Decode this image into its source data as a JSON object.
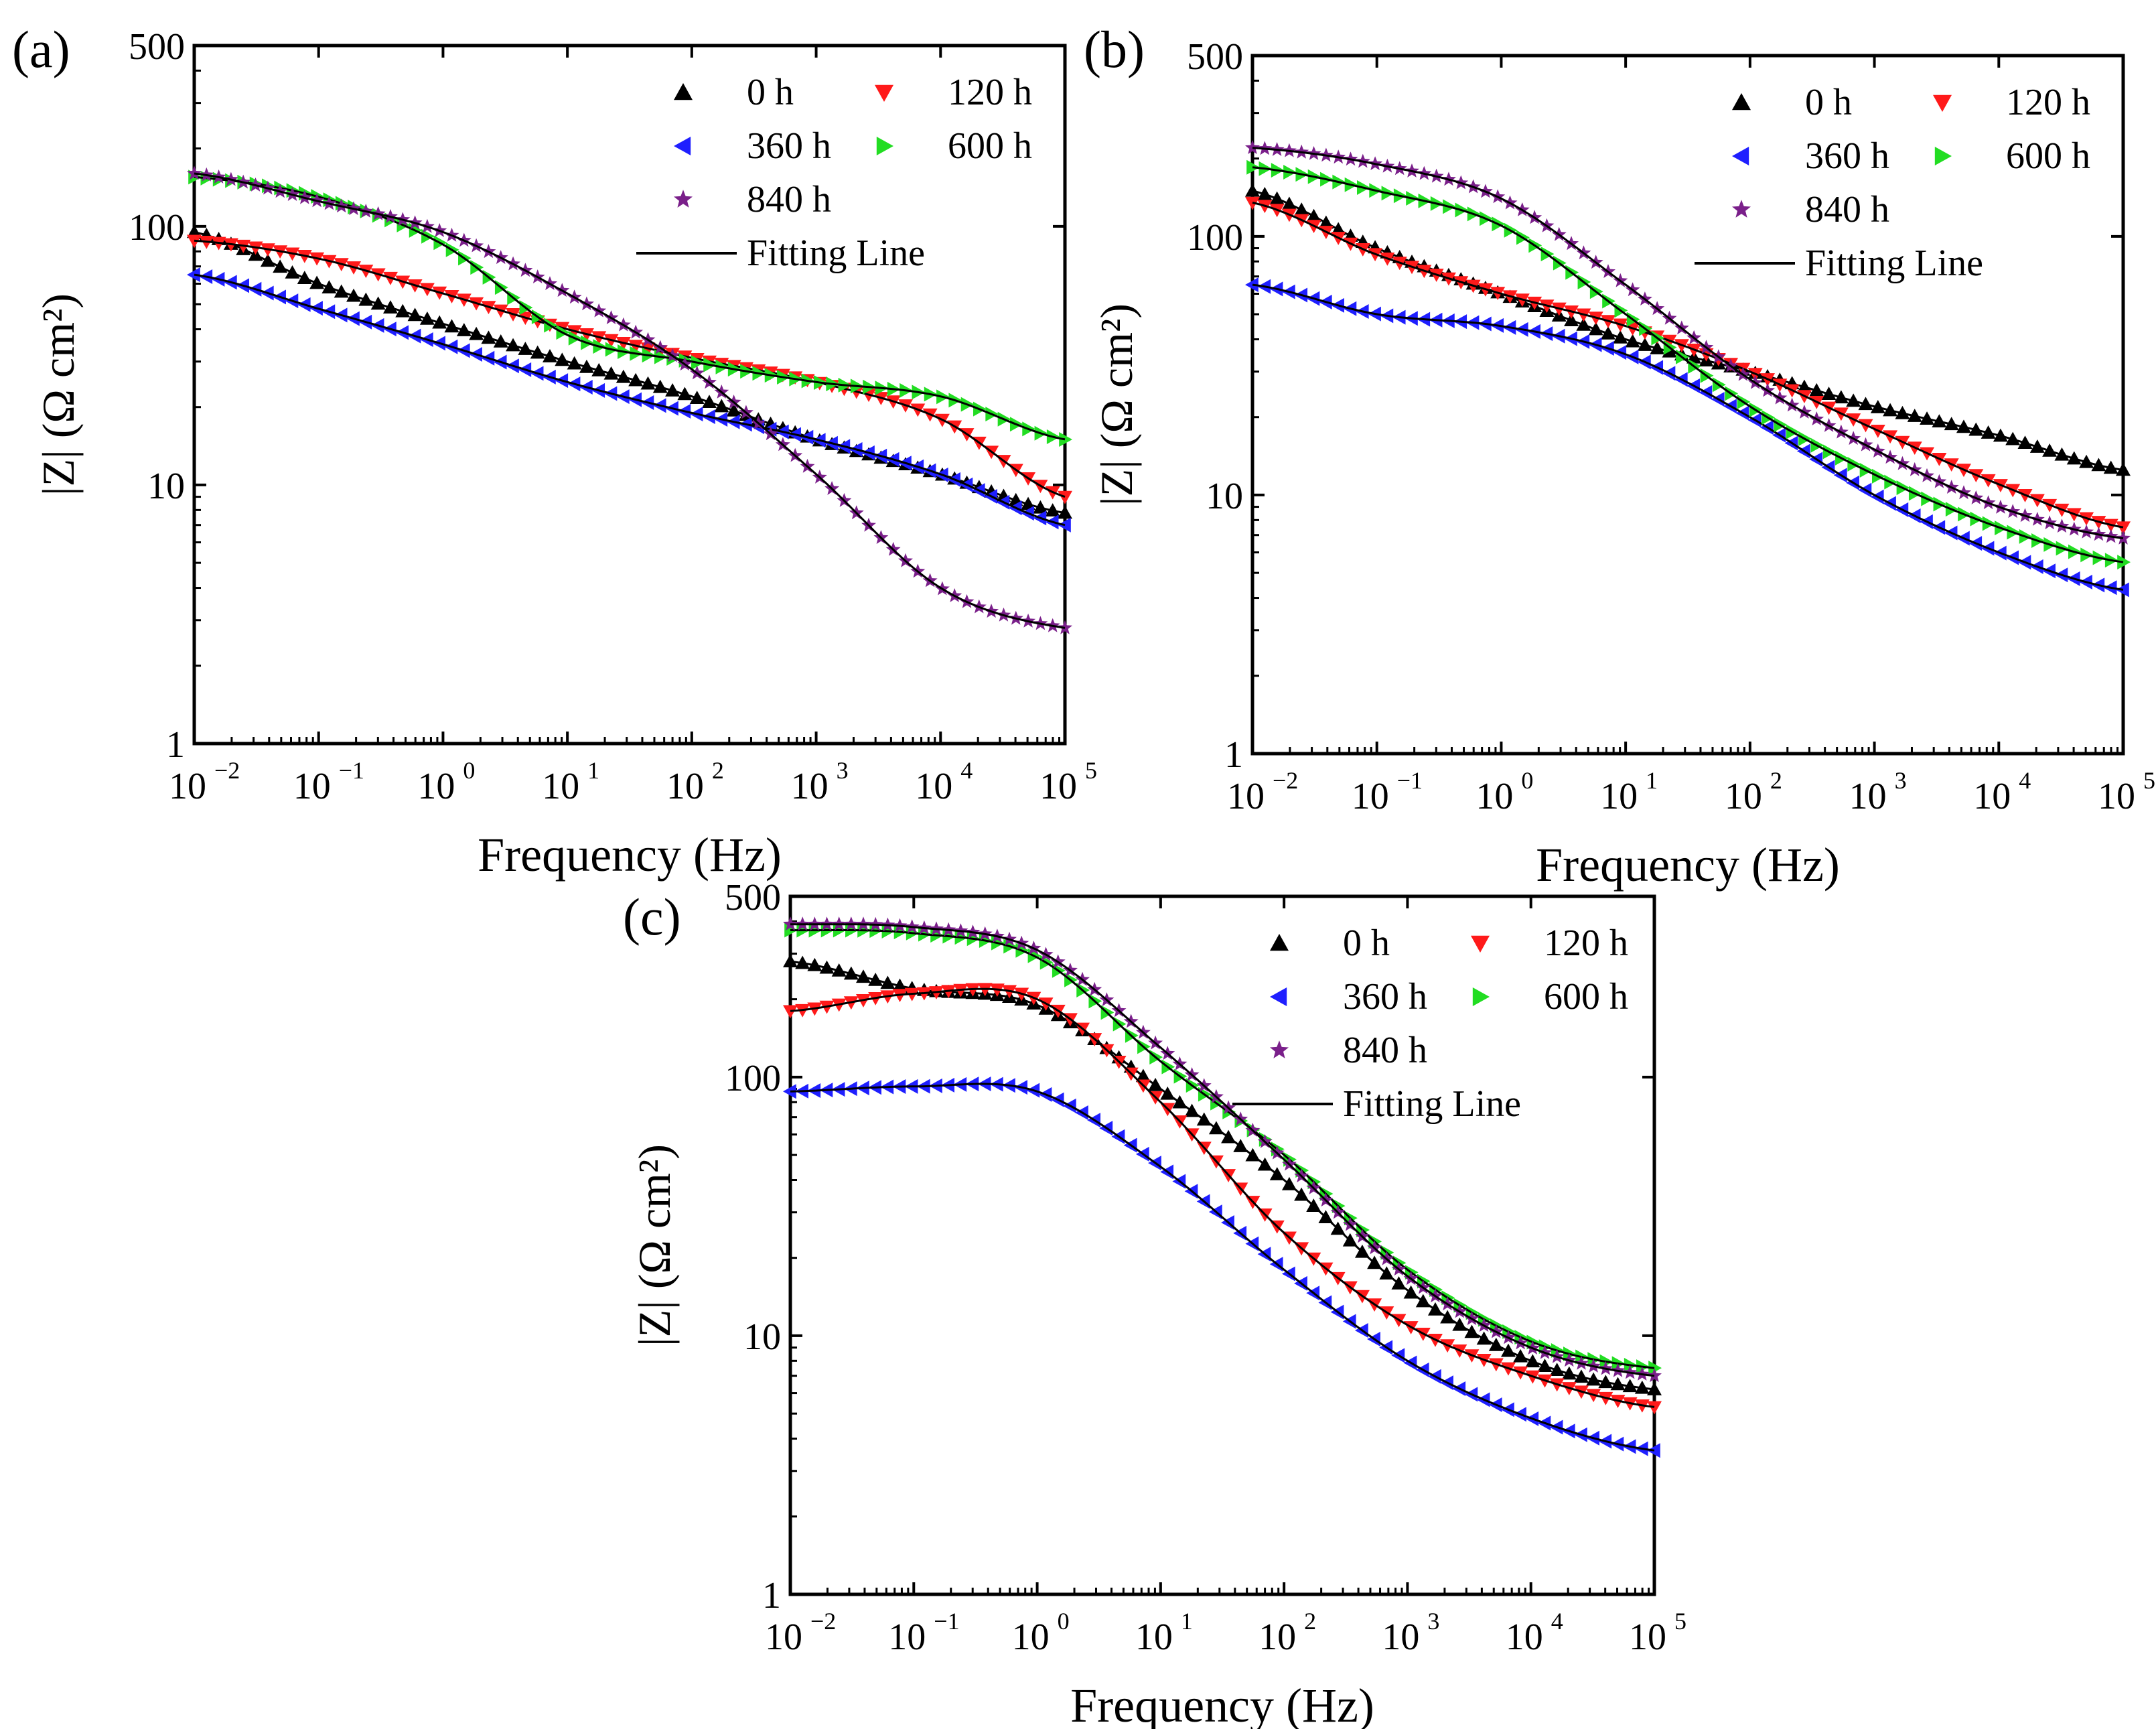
{
  "figure": {
    "colors": {
      "0 h": "#000000",
      "120 h": "#ff1a1a",
      "360 h": "#1f1fff",
      "600 h": "#22dd22",
      "840 h": "#7a1f8a",
      "fit": "#000000"
    }
  },
  "chart_data": [
    {
      "panel": "(a)",
      "type": "scatter",
      "xscale": "log",
      "yscale": "log",
      "xlim": [
        0.01,
        100000
      ],
      "ylim": [
        1,
        500
      ],
      "xticks": [
        "10",
        "10",
        "10",
        "10",
        "10",
        "10",
        "10",
        "10"
      ],
      "xtick_exponents": [
        "−2",
        "−1",
        "0",
        "1",
        "2",
        "3",
        "4",
        "5"
      ],
      "yticks": [
        "1",
        "10",
        "100",
        "500"
      ],
      "xlabel": "Frequency (Hz)",
      "ylabel": "|Z| (Ω cm²)",
      "legend": [
        "0 h",
        "120 h",
        "360 h",
        "600 h",
        "840 h",
        "Fitting Line"
      ],
      "series": [
        {
          "name": "0 h",
          "marker": "up",
          "x": [
            0.01,
            0.1,
            1,
            10,
            100,
            1000,
            10000,
            100000
          ],
          "y": [
            95,
            60,
            42,
            30,
            22,
            15,
            11,
            7.8
          ]
        },
        {
          "name": "120 h",
          "marker": "down",
          "x": [
            0.01,
            0.1,
            1,
            10,
            100,
            1000,
            10000,
            100000
          ],
          "y": [
            88,
            75,
            55,
            40,
            31,
            25,
            18,
            9
          ]
        },
        {
          "name": "360 h",
          "marker": "left",
          "x": [
            0.01,
            0.1,
            1,
            10,
            100,
            1000,
            10000,
            100000
          ],
          "y": [
            65,
            48,
            35,
            25,
            19,
            15,
            11,
            7
          ]
        },
        {
          "name": "600 h",
          "marker": "right",
          "x": [
            0.01,
            0.1,
            1,
            10,
            100,
            1000,
            10000,
            100000
          ],
          "y": [
            155,
            130,
            85,
            38,
            30,
            25,
            22,
            15
          ]
        },
        {
          "name": "840 h",
          "marker": "star",
          "x": [
            0.01,
            0.1,
            1,
            10,
            100,
            1000,
            10000,
            100000
          ],
          "y": [
            160,
            125,
            95,
            55,
            28,
            11,
            4.0,
            2.8
          ]
        }
      ]
    },
    {
      "panel": "(b)",
      "type": "scatter",
      "xscale": "log",
      "yscale": "log",
      "xlim": [
        0.01,
        100000
      ],
      "ylim": [
        1,
        500
      ],
      "xticks": [
        "10",
        "10",
        "10",
        "10",
        "10",
        "10",
        "10",
        "10"
      ],
      "xtick_exponents": [
        "−2",
        "−1",
        "0",
        "1",
        "2",
        "3",
        "4",
        "5"
      ],
      "yticks": [
        "1",
        "10",
        "100",
        "500"
      ],
      "xlabel": "Frequency (Hz)",
      "ylabel": "|Z| (Ω cm²)",
      "legend": [
        "0 h",
        "120 h",
        "360 h",
        "600 h",
        "840 h",
        "Fitting Line"
      ],
      "series": [
        {
          "name": "0 h",
          "marker": "up",
          "x": [
            0.01,
            0.1,
            1,
            10,
            100,
            1000,
            10000,
            100000
          ],
          "y": [
            150,
            90,
            60,
            40,
            30,
            22,
            17,
            12.5
          ]
        },
        {
          "name": "120 h",
          "marker": "down",
          "x": [
            0.01,
            0.1,
            1,
            10,
            100,
            1000,
            10000,
            100000
          ],
          "y": [
            135,
            85,
            60,
            45,
            30,
            18,
            11,
            7.5
          ]
        },
        {
          "name": "360 h",
          "marker": "left",
          "x": [
            0.01,
            0.1,
            1,
            10,
            100,
            1000,
            10000,
            100000
          ],
          "y": [
            65,
            50,
            45,
            35,
            20,
            10,
            6,
            4.3
          ]
        },
        {
          "name": "600 h",
          "marker": "right",
          "x": [
            0.01,
            0.1,
            1,
            10,
            100,
            1000,
            10000,
            100000
          ],
          "y": [
            185,
            150,
            110,
            50,
            22,
            12,
            7.5,
            5.5
          ]
        },
        {
          "name": "840 h",
          "marker": "star",
          "x": [
            0.01,
            0.1,
            1,
            10,
            100,
            1000,
            10000,
            100000
          ],
          "y": [
            220,
            190,
            140,
            65,
            28,
            15,
            9,
            6.8
          ]
        }
      ]
    },
    {
      "panel": "(c)",
      "type": "scatter",
      "xscale": "log",
      "yscale": "log",
      "xlim": [
        0.01,
        100000
      ],
      "ylim": [
        1,
        500
      ],
      "xticks": [
        "10",
        "10",
        "10",
        "10",
        "10",
        "10",
        "10",
        "10"
      ],
      "xtick_exponents": [
        "−2",
        "−1",
        "0",
        "1",
        "2",
        "3",
        "4",
        "5"
      ],
      "yticks": [
        "1",
        "10",
        "100",
        "500"
      ],
      "xlabel": "Frequency (Hz)",
      "ylabel": "|Z| (Ω cm²)",
      "legend": [
        "0 h",
        "120 h",
        "360 h",
        "600 h",
        "840 h",
        "Fitting Line"
      ],
      "series": [
        {
          "name": "0 h",
          "marker": "up",
          "x": [
            0.01,
            0.1,
            1,
            10,
            100,
            1000,
            10000,
            100000
          ],
          "y": [
            280,
            220,
            190,
            90,
            40,
            15,
            8,
            6.2
          ]
        },
        {
          "name": "120 h",
          "marker": "down",
          "x": [
            0.01,
            0.1,
            1,
            10,
            100,
            1000,
            10000,
            100000
          ],
          "y": [
            180,
            210,
            200,
            80,
            25,
            11,
            7,
            5.3
          ]
        },
        {
          "name": "360 h",
          "marker": "left",
          "x": [
            0.01,
            0.1,
            1,
            10,
            100,
            1000,
            10000,
            100000
          ],
          "y": [
            88,
            92,
            88,
            45,
            18,
            8,
            4.8,
            3.6
          ]
        },
        {
          "name": "600 h",
          "marker": "right",
          "x": [
            0.01,
            0.1,
            1,
            10,
            100,
            1000,
            10000,
            100000
          ],
          "y": [
            370,
            360,
            290,
            115,
            50,
            18,
            9.5,
            7.5
          ]
        },
        {
          "name": "840 h",
          "marker": "star",
          "x": [
            0.01,
            0.1,
            1,
            10,
            100,
            1000,
            10000,
            100000
          ],
          "y": [
            390,
            380,
            310,
            130,
            48,
            17,
            9,
            7
          ]
        }
      ]
    }
  ]
}
